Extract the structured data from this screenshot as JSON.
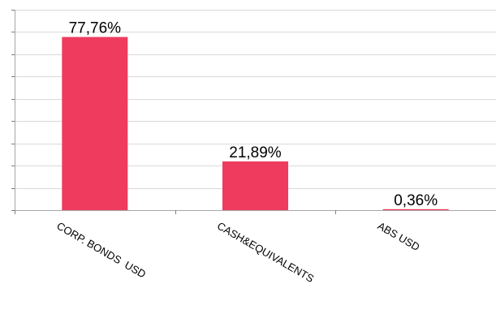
{
  "chart_data": {
    "type": "bar",
    "categories": [
      "CORP. BONDS  USD",
      "CASH&EQUIVALENTS",
      "ABS USD"
    ],
    "values": [
      77.76,
      21.89,
      0.36
    ],
    "data_labels": [
      "77,76%",
      "21,89%",
      "0,36%"
    ],
    "title": "",
    "xlabel": "",
    "ylabel": "",
    "ylim": [
      0,
      90
    ],
    "grid": true,
    "legend": "none",
    "bar_color": "#ef3b5e"
  }
}
